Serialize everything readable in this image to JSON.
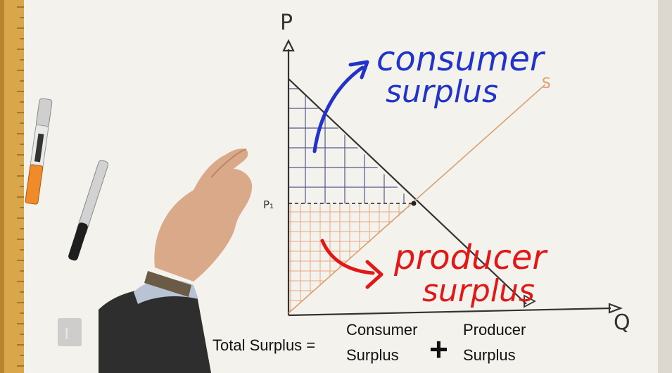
{
  "axes": {
    "y_label": "P",
    "x_label": "Q",
    "price_label": "P₁",
    "supply_label": "S"
  },
  "annotations": {
    "consumer_line1": "consumer",
    "consumer_line2": "surplus",
    "producer_line1": "producer",
    "producer_line2": "surplus"
  },
  "caption": {
    "total_label": "Total Surplus =",
    "consumer_line1": "Consumer",
    "consumer_line2": "Surplus",
    "plus": "+",
    "producer_line1": "Producer",
    "producer_line2": "Surplus"
  },
  "colors": {
    "paper": "#f4f2ec",
    "axis_ink": "#333333",
    "consumer_ink": "#2233c8",
    "producer_ink": "#e01818",
    "supply_ink": "#d8a070",
    "consumer_hatch": "#4b4f8a",
    "producer_hatch": "#e8a27a"
  },
  "icons": [
    "ruler-icon",
    "marker-icon",
    "pen-icon",
    "hand-icon",
    "watermark-icon"
  ]
}
